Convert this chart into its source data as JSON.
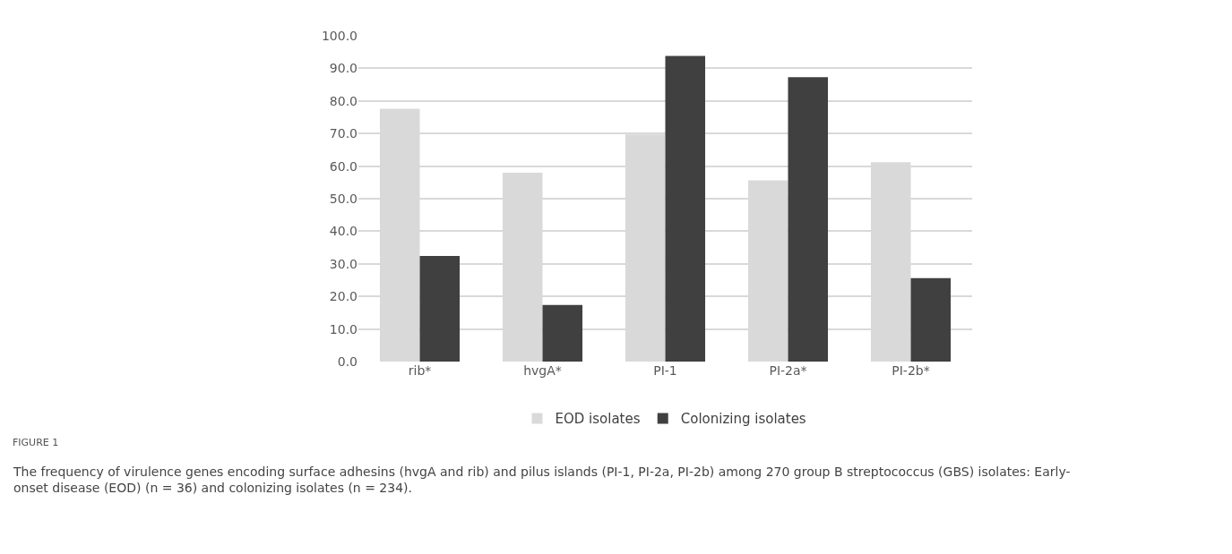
{
  "chart_data": {
    "type": "bar",
    "categories": [
      "rib*",
      "hvgA*",
      "PI-1",
      "PI-2a*",
      "PI-2b*"
    ],
    "series": [
      {
        "name": "EOD isolates",
        "color": "#d9d9d9",
        "values": [
          77.6,
          58.0,
          69.7,
          55.6,
          61.2
        ]
      },
      {
        "name": "Colonizing isolates",
        "color": "#404040",
        "values": [
          32.4,
          17.4,
          93.8,
          87.3,
          25.6
        ]
      }
    ],
    "ylim": [
      0,
      100
    ],
    "yticks": [
      {
        "value": 0,
        "label": "0.0"
      },
      {
        "value": 10,
        "label": "10.0"
      },
      {
        "value": 20,
        "label": "20.0"
      },
      {
        "value": 30,
        "label": "30.0"
      },
      {
        "value": 40,
        "label": "40.0"
      },
      {
        "value": 50,
        "label": "50.0"
      },
      {
        "value": 60,
        "label": "60.0"
      },
      {
        "value": 70,
        "label": "70.0"
      },
      {
        "value": 80,
        "label": "80.0"
      },
      {
        "value": 90,
        "label": "90.0"
      },
      {
        "value": 100,
        "label": "100.0"
      }
    ],
    "grid": "y",
    "legend": "bottom",
    "annotations": [
      "FIGURE 1",
      "The frequency of virulence genes encoding surface adhesins (hvgA and rib) and pilus islands (PI-1, PI-2a, PI-2b) among 270 group B streptococcus (GBS) isolates: Early-onset disease (EOD) (n = 36) and colonizing isolates (n = 234)."
    ]
  }
}
